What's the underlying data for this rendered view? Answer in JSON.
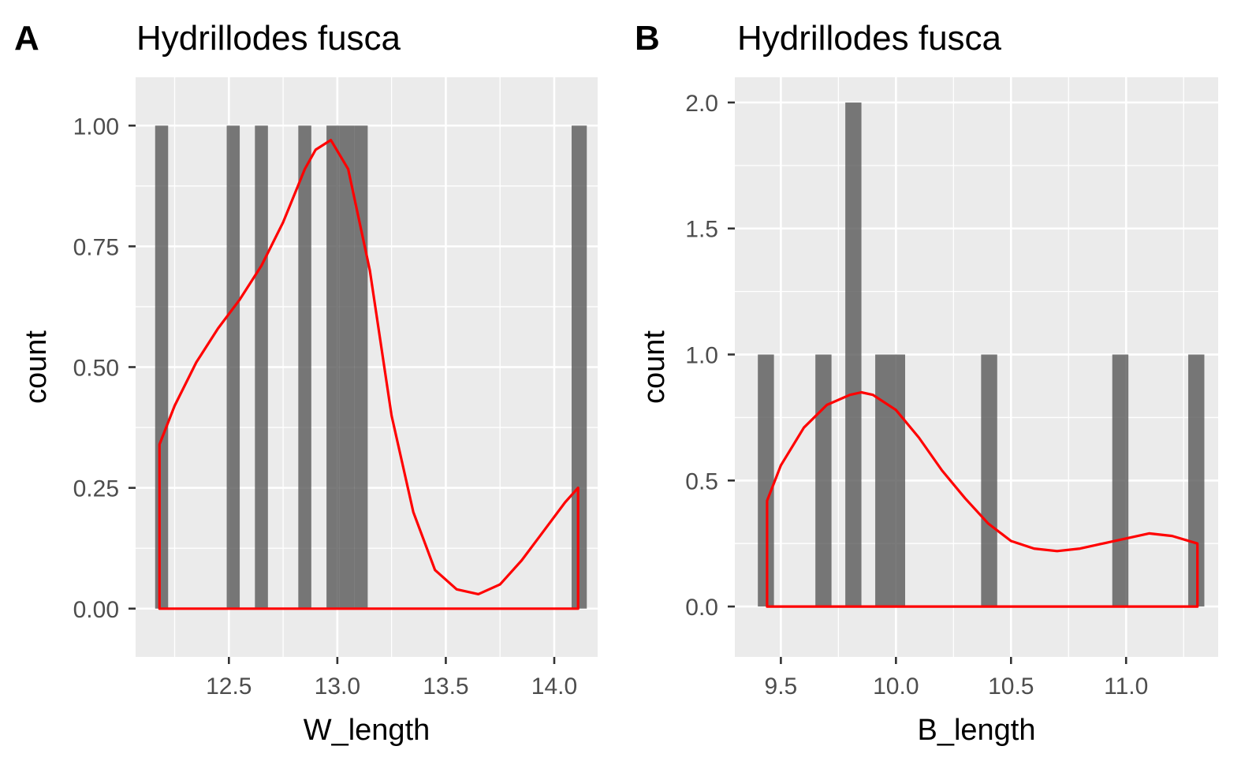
{
  "chart_data": [
    {
      "type": "bar",
      "tag": "A",
      "title": "Hydrillodes fusca",
      "xlabel": "W_length",
      "ylabel": "count",
      "xlim": [
        12.07,
        14.2
      ],
      "ylim": [
        -0.1,
        1.1
      ],
      "xticks": [
        12.5,
        13.0,
        13.5,
        14.0
      ],
      "xtick_labels": [
        "12.5",
        "13.0",
        "13.5",
        "14.0"
      ],
      "xticks_minor": [
        12.25,
        12.75,
        13.25,
        13.75
      ],
      "yticks": [
        0,
        0.25,
        0.5,
        0.75,
        1.0
      ],
      "ytick_labels": [
        "0.00",
        "0.25",
        "0.50",
        "0.75",
        "1.00"
      ],
      "yticks_minor": [
        0.125,
        0.375,
        0.625,
        0.875
      ],
      "grid": true,
      "bins": [
        {
          "x0": 12.16,
          "x1": 12.22,
          "count": 1
        },
        {
          "x0": 12.49,
          "x1": 12.55,
          "count": 1
        },
        {
          "x0": 12.62,
          "x1": 12.68,
          "count": 1
        },
        {
          "x0": 12.82,
          "x1": 12.88,
          "count": 1
        },
        {
          "x0": 12.95,
          "x1": 13.01,
          "count": 1
        },
        {
          "x0": 13.01,
          "x1": 13.08,
          "count": 1
        },
        {
          "x0": 13.08,
          "x1": 13.14,
          "count": 1
        },
        {
          "x0": 14.08,
          "x1": 14.15,
          "count": 1
        }
      ],
      "density": {
        "x": [
          12.18,
          12.25,
          12.35,
          12.45,
          12.55,
          12.65,
          12.75,
          12.85,
          12.9,
          12.97,
          13.05,
          13.15,
          13.25,
          13.35,
          13.45,
          13.55,
          13.65,
          13.75,
          13.85,
          13.95,
          14.05,
          14.11
        ],
        "y": [
          0.34,
          0.42,
          0.51,
          0.58,
          0.64,
          0.71,
          0.8,
          0.91,
          0.95,
          0.97,
          0.91,
          0.7,
          0.4,
          0.2,
          0.08,
          0.04,
          0.03,
          0.05,
          0.1,
          0.16,
          0.22,
          0.25
        ]
      }
    },
    {
      "type": "bar",
      "tag": "B",
      "title": "Hydrillodes fusca",
      "xlabel": "B_length",
      "ylabel": "count",
      "xlim": [
        9.3,
        11.4
      ],
      "ylim": [
        -0.2,
        2.1
      ],
      "xticks": [
        9.5,
        10.0,
        10.5,
        11.0
      ],
      "xtick_labels": [
        "9.5",
        "10.0",
        "10.5",
        "11.0"
      ],
      "xticks_minor": [
        9.75,
        10.25,
        10.75,
        11.25
      ],
      "yticks": [
        0,
        0.5,
        1.0,
        1.5,
        2.0
      ],
      "ytick_labels": [
        "0.0",
        "0.5",
        "1.0",
        "1.5",
        "2.0"
      ],
      "yticks_minor": [
        0.25,
        0.75,
        1.25,
        1.75
      ],
      "grid": true,
      "bins": [
        {
          "x0": 9.4,
          "x1": 9.47,
          "count": 1
        },
        {
          "x0": 9.65,
          "x1": 9.72,
          "count": 1
        },
        {
          "x0": 9.78,
          "x1": 9.85,
          "count": 2
        },
        {
          "x0": 9.91,
          "x1": 9.98,
          "count": 1
        },
        {
          "x0": 9.98,
          "x1": 10.04,
          "count": 1
        },
        {
          "x0": 10.37,
          "x1": 10.44,
          "count": 1
        },
        {
          "x0": 10.94,
          "x1": 11.01,
          "count": 1
        },
        {
          "x0": 11.27,
          "x1": 11.34,
          "count": 1
        }
      ],
      "density": {
        "x": [
          9.44,
          9.5,
          9.6,
          9.7,
          9.8,
          9.85,
          9.9,
          10.0,
          10.1,
          10.2,
          10.3,
          10.4,
          10.5,
          10.6,
          10.7,
          10.8,
          10.9,
          11.0,
          11.1,
          11.2,
          11.31
        ],
        "y": [
          0.42,
          0.56,
          0.71,
          0.8,
          0.84,
          0.85,
          0.84,
          0.78,
          0.67,
          0.54,
          0.43,
          0.33,
          0.26,
          0.23,
          0.22,
          0.23,
          0.25,
          0.27,
          0.29,
          0.28,
          0.25
        ]
      }
    }
  ]
}
